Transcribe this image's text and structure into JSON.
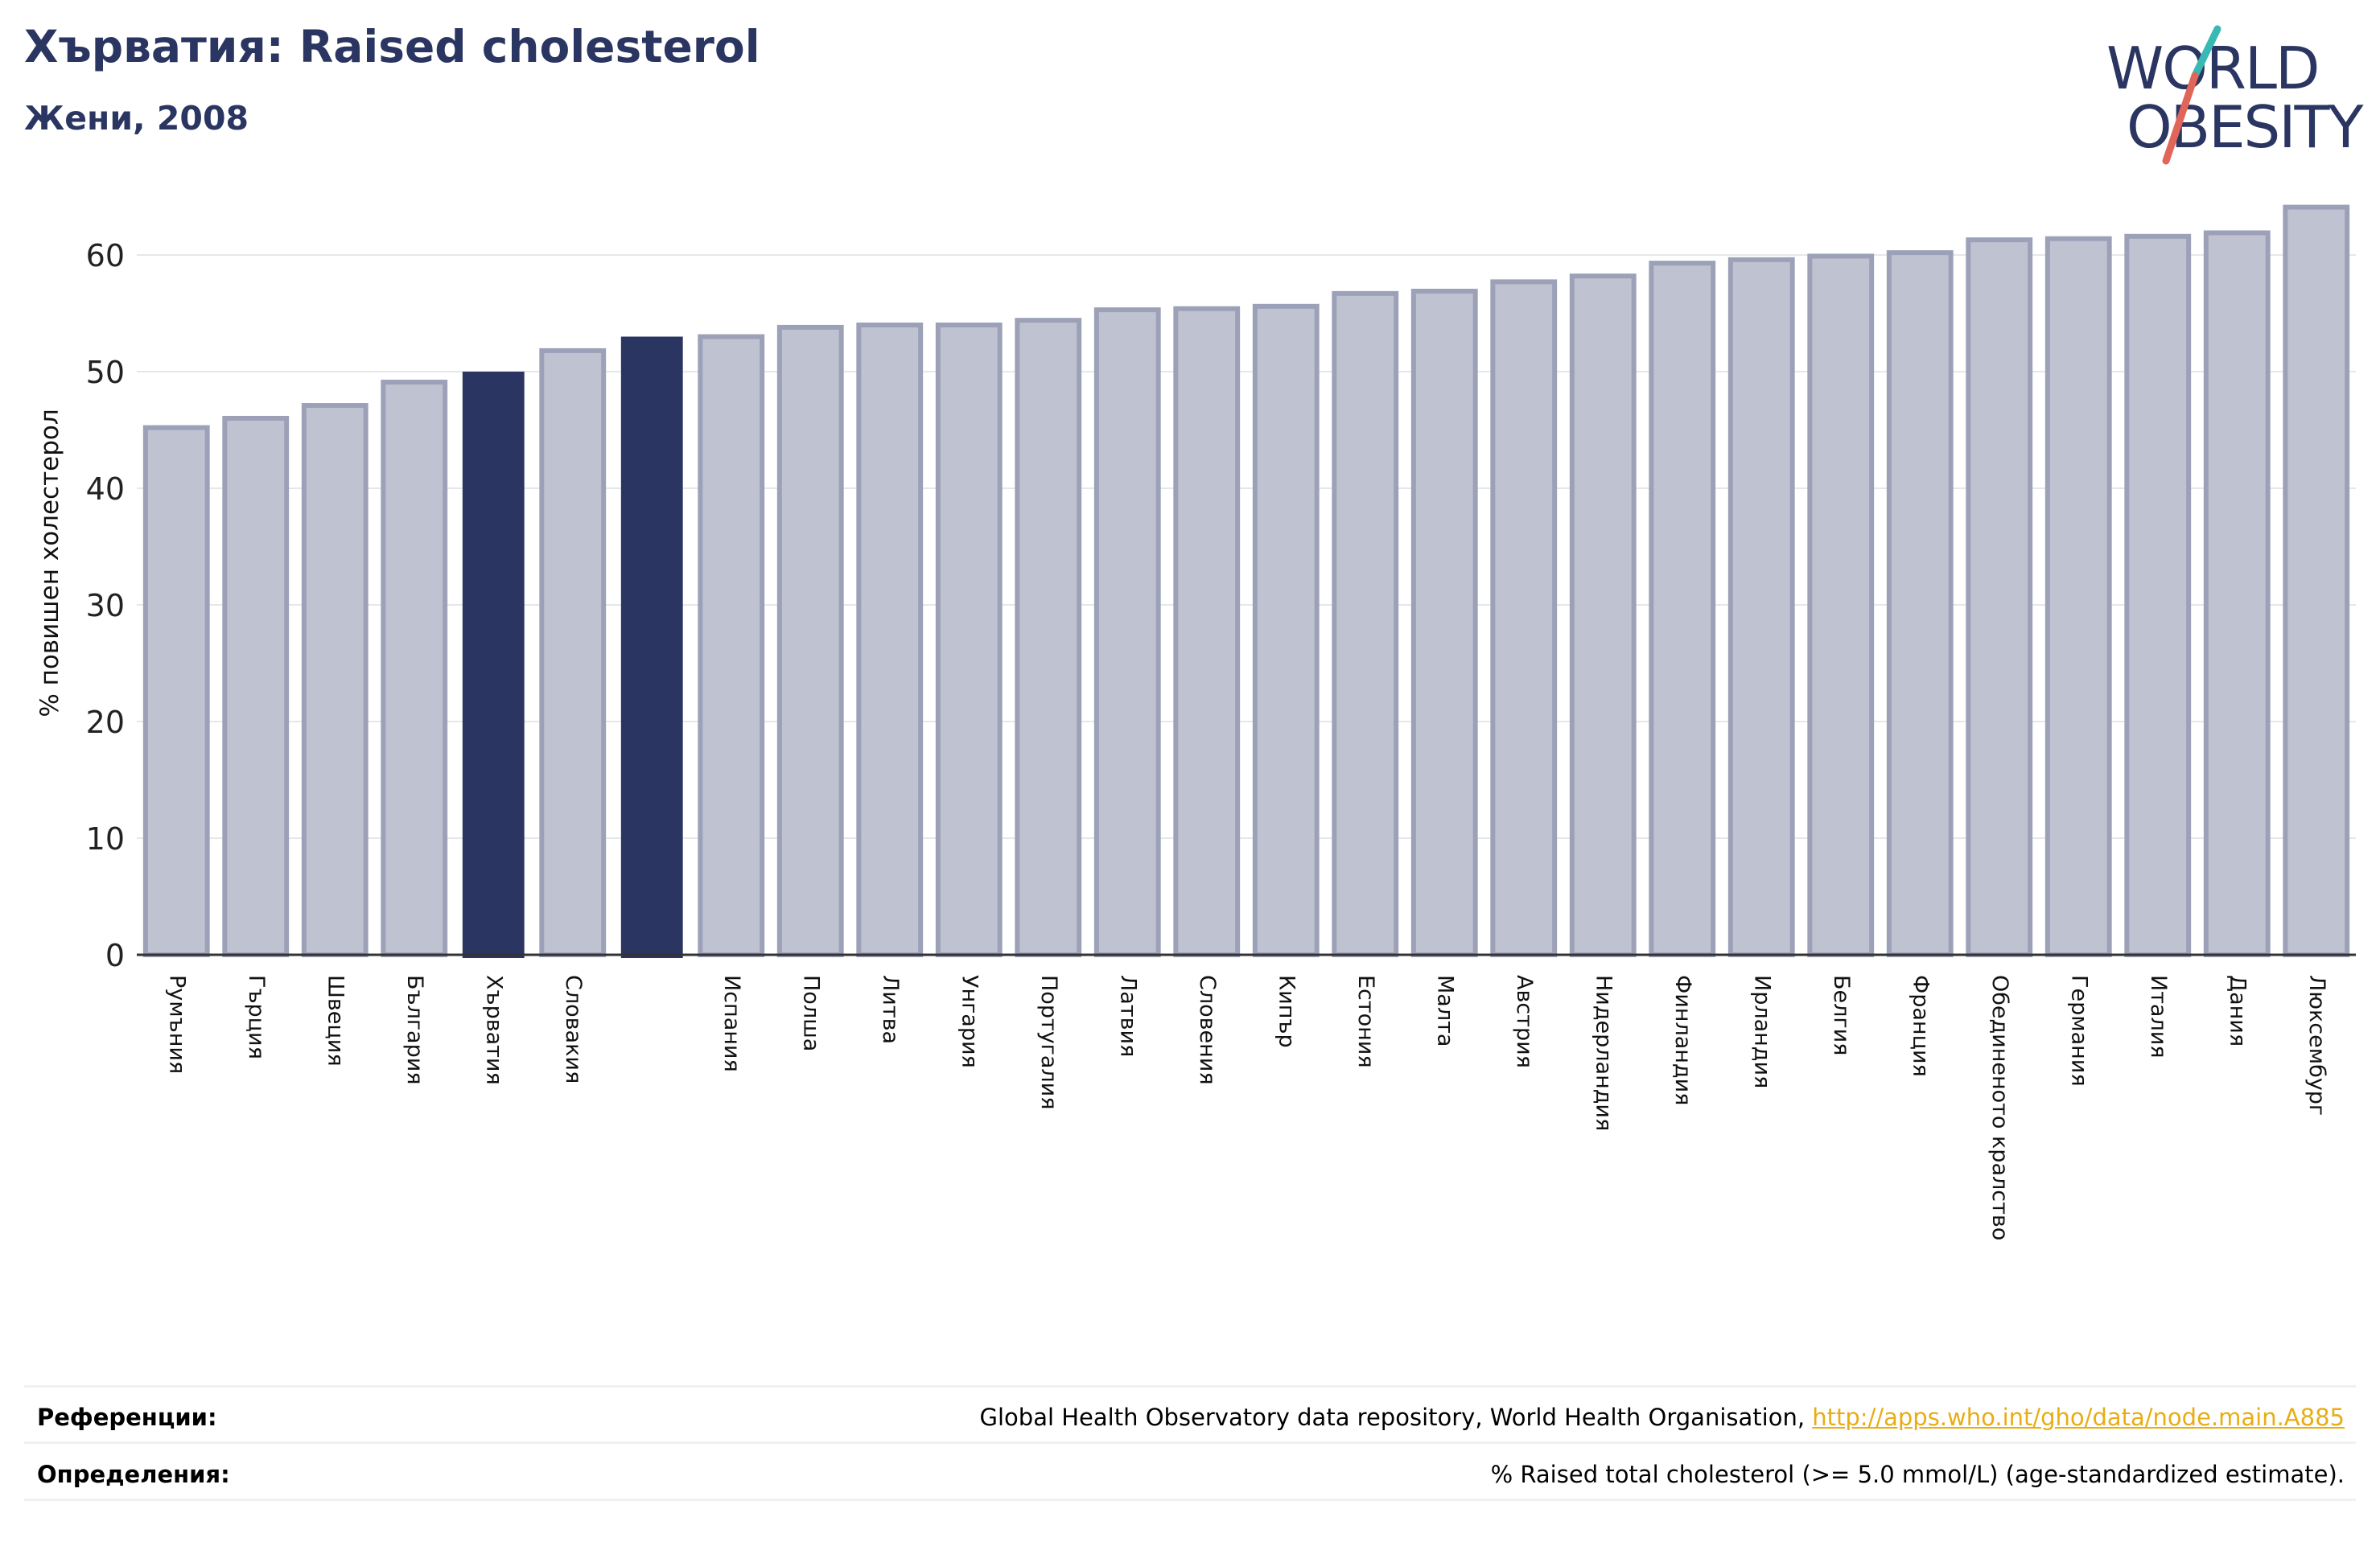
{
  "header": {
    "title": "Хърватия: Raised cholesterol",
    "subtitle": "Жени, 2008"
  },
  "logo": {
    "line1": "WORLD",
    "line2": "OBESITY"
  },
  "footer": {
    "references_label": "Референции:",
    "references_text": "Global Health Observatory data repository, World Health Organisation, ",
    "references_link": "http://apps.who.int/gho/data/node.main.A885",
    "definitions_label": "Определения:",
    "definitions_text": "% Raised total cholesterol (>= 5.0 mmol/L) (age-standardized estimate)."
  },
  "colors": {
    "highlight": "#2a3561",
    "bar_fill": "#bfc2d0",
    "bar_edge": "#9ca1b8",
    "link": "#e8ad14",
    "logo_navy": "#2a3561",
    "logo_teal": "#39b8b4",
    "logo_red": "#e0665a"
  },
  "chart_data": {
    "type": "bar",
    "ylabel": "% повишен холестерол",
    "xlabel": "",
    "ylim": [
      0,
      66
    ],
    "yticks": [
      0,
      10,
      20,
      30,
      40,
      50,
      60
    ],
    "grid": true,
    "categories": [
      "Румъния",
      "Гърция",
      "Швеция",
      "България",
      "Хърватия",
      "Словакия",
      "",
      "Испания",
      "Полша",
      "Литва",
      "Унгария",
      "Португалия",
      "Латвия",
      "Словения",
      "Кипър",
      "Естония",
      "Малта",
      "Австрия",
      "Нидерландия",
      "Финландия",
      "Ирландия",
      "Белгия",
      "Франция",
      "Обединеното кралство",
      "Германия",
      "Италия",
      "Дания",
      "Люксембург"
    ],
    "values": [
      45.2,
      46.0,
      47.1,
      49.1,
      50.0,
      51.8,
      53.0,
      53.0,
      53.8,
      54.0,
      54.0,
      54.4,
      55.3,
      55.4,
      55.6,
      56.7,
      56.9,
      57.7,
      58.2,
      59.3,
      59.6,
      59.9,
      60.2,
      61.3,
      61.4,
      61.6,
      61.9,
      64.1
    ],
    "highlighted": [
      4,
      6
    ]
  }
}
